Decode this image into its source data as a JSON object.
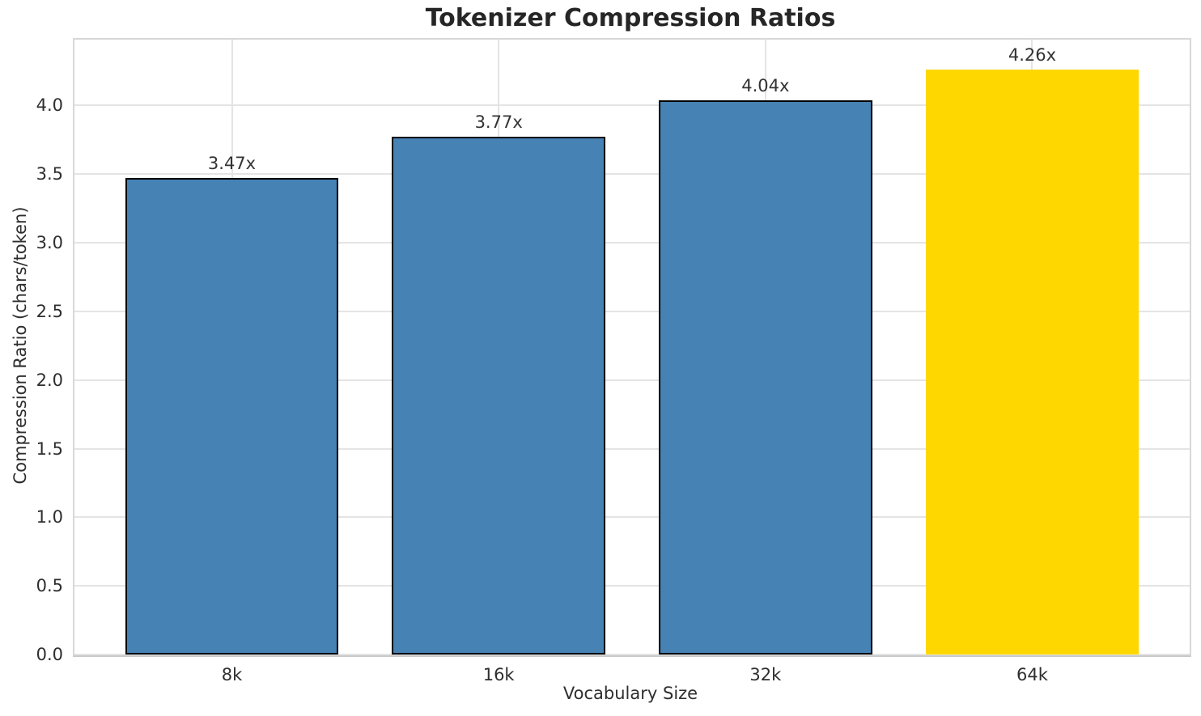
{
  "chart_data": {
    "type": "bar",
    "title": "Tokenizer Compression Ratios",
    "xlabel": "Vocabulary Size",
    "ylabel": "Compression Ratio (chars/token)",
    "categories": [
      "8k",
      "16k",
      "32k",
      "64k"
    ],
    "values": [
      3.47,
      3.77,
      4.04,
      4.26
    ],
    "bar_labels": [
      "3.47x",
      "3.77x",
      "4.04x",
      "4.26x"
    ],
    "bar_colors": [
      "#4682B4",
      "#4682B4",
      "#4682B4",
      "#FFD700"
    ],
    "bar_edge_colors": [
      "#000000",
      "#000000",
      "#000000",
      null
    ],
    "bar_edge_width": 2,
    "highlighted_category": "64k",
    "yticks": [
      0.0,
      0.5,
      1.0,
      1.5,
      2.0,
      2.5,
      3.0,
      3.5,
      4.0
    ],
    "ytick_labels": [
      "0.0",
      "0.5",
      "1.0",
      "1.5",
      "2.0",
      "2.5",
      "3.0",
      "3.5",
      "4.0"
    ],
    "ylim": [
      0,
      4.48
    ],
    "xlim": [
      -0.59,
      3.59
    ],
    "bar_width": 0.8,
    "grid": true,
    "legend": "none",
    "colors": {
      "bar_default": "#4682B4",
      "bar_highlight": "#FFD700",
      "bar_edge": "#000000",
      "grid": "#e4e4e4",
      "spine": "#d8d8d8",
      "text": "#2e2e2e",
      "title_text": "#262626",
      "background": "#ffffff"
    }
  }
}
